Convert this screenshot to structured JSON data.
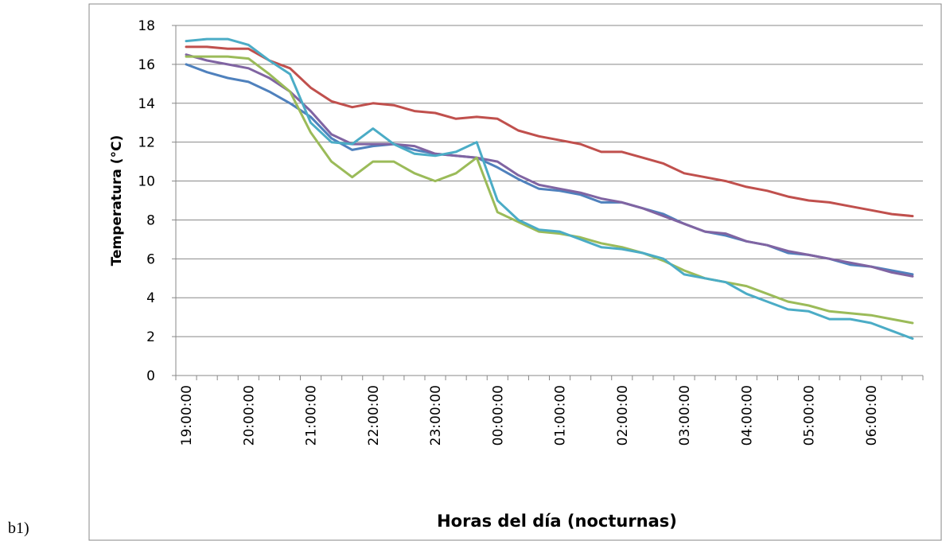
{
  "panel_label": "b1)",
  "chart_data": {
    "type": "line",
    "x_label": "Horas del día (nocturnas)",
    "y_label": "Temperatura (°C)",
    "categories": [
      "19:00:00",
      null,
      null,
      "20:00:00",
      null,
      null,
      "21:00:00",
      null,
      null,
      "22:00:00",
      null,
      null,
      "23:00:00",
      null,
      null,
      "00:00:00",
      null,
      null,
      "01:00:00",
      null,
      null,
      "02:00:00",
      null,
      null,
      "03:00:00",
      null,
      null,
      "04:00:00",
      null,
      null,
      "05:00:00",
      null,
      null,
      "06:00:00",
      null,
      null
    ],
    "ylim": [
      0,
      18
    ],
    "yticks": [
      0,
      2,
      4,
      6,
      8,
      10,
      12,
      14,
      16,
      18
    ],
    "grid": true,
    "series": [
      {
        "color": "#c0504d",
        "values": [
          16.9,
          16.9,
          16.8,
          16.8,
          16.2,
          15.8,
          14.8,
          14.1,
          13.8,
          14.0,
          13.9,
          13.6,
          13.5,
          13.2,
          13.3,
          13.2,
          12.6,
          12.3,
          12.1,
          11.9,
          11.5,
          11.5,
          11.2,
          10.9,
          10.4,
          10.2,
          10.0,
          9.7,
          9.5,
          9.2,
          9.0,
          8.9,
          8.7,
          8.5,
          8.3,
          8.2
        ]
      },
      {
        "color": "#4f81bd",
        "values": [
          16.0,
          15.6,
          15.3,
          15.1,
          14.6,
          14.0,
          13.3,
          12.2,
          11.6,
          11.8,
          11.9,
          11.6,
          11.4,
          11.3,
          11.2,
          10.7,
          10.1,
          9.6,
          9.5,
          9.3,
          8.9,
          8.9,
          8.6,
          8.3,
          7.8,
          7.4,
          7.2,
          6.9,
          6.7,
          6.3,
          6.2,
          6.0,
          5.7,
          5.6,
          5.4,
          5.2
        ]
      },
      {
        "color": "#8064a2",
        "values": [
          16.5,
          16.2,
          16.0,
          15.8,
          15.3,
          14.6,
          13.6,
          12.4,
          11.9,
          11.9,
          11.9,
          11.8,
          11.4,
          11.3,
          11.2,
          11.0,
          10.3,
          9.8,
          9.6,
          9.4,
          9.1,
          8.9,
          8.6,
          8.2,
          7.8,
          7.4,
          7.3,
          6.9,
          6.7,
          6.4,
          6.2,
          6.0,
          5.8,
          5.6,
          5.3,
          5.1
        ]
      },
      {
        "color": "#9bbb59",
        "values": [
          16.4,
          16.4,
          16.4,
          16.3,
          15.5,
          14.6,
          12.5,
          11.0,
          10.2,
          11.0,
          11.0,
          10.4,
          10.0,
          10.4,
          11.2,
          8.4,
          7.9,
          7.4,
          7.3,
          7.1,
          6.8,
          6.6,
          6.3,
          5.9,
          5.4,
          5.0,
          4.8,
          4.6,
          4.2,
          3.8,
          3.6,
          3.3,
          3.2,
          3.1,
          2.9,
          2.7
        ]
      },
      {
        "color": "#4bacc6",
        "values": [
          17.2,
          17.3,
          17.3,
          17.0,
          16.2,
          15.5,
          13.0,
          12.0,
          11.9,
          12.7,
          11.9,
          11.4,
          11.3,
          11.5,
          12.0,
          9.0,
          8.0,
          7.5,
          7.4,
          7.0,
          6.6,
          6.5,
          6.3,
          6.0,
          5.2,
          5.0,
          4.8,
          4.2,
          3.8,
          3.4,
          3.3,
          2.9,
          2.9,
          2.7,
          2.3,
          1.9
        ]
      }
    ]
  }
}
